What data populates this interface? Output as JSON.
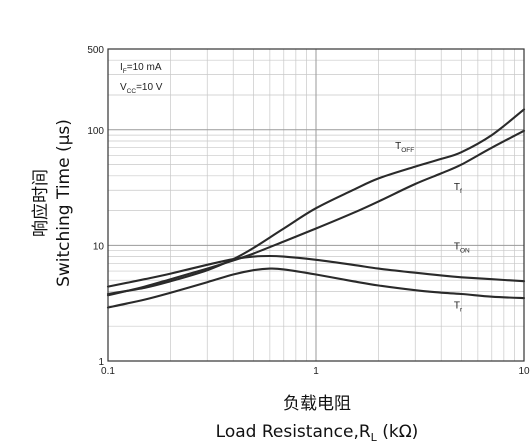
{
  "chart_data": {
    "type": "line",
    "title": "",
    "xlabel_cn": "负载电阻",
    "xlabel": "Load Resistance,R",
    "xlabel_sub": "L",
    "xlabel_unit": " (kΩ)",
    "ylabel_cn": "响应时间",
    "ylabel": "Switching Time (μs)",
    "x_scale": "log",
    "y_scale": "log",
    "xlim": [
      0.1,
      10
    ],
    "ylim": [
      1,
      500
    ],
    "grid": true,
    "x_ticks": [
      {
        "v": 0.1,
        "label": "0.1"
      },
      {
        "v": 1,
        "label": "1"
      },
      {
        "v": 10,
        "label": "10"
      }
    ],
    "y_ticks": [
      {
        "v": 1,
        "label": "1"
      },
      {
        "v": 10,
        "label": "10"
      },
      {
        "v": 100,
        "label": "100"
      },
      {
        "v": 500,
        "label": "500"
      }
    ],
    "conditions": [
      {
        "main": "I",
        "sub": "F",
        "rest": "=10 mA"
      },
      {
        "main": "V",
        "sub": "CC",
        "rest": "=10 V"
      }
    ],
    "series": [
      {
        "main": "T",
        "sub": "OFF",
        "label_at": [
          2.4,
          68
        ],
        "points": [
          [
            0.1,
            3.8
          ],
          [
            0.15,
            4.3
          ],
          [
            0.2,
            4.9
          ],
          [
            0.3,
            6.1
          ],
          [
            0.4,
            7.6
          ],
          [
            0.5,
            9.5
          ],
          [
            0.7,
            14
          ],
          [
            1,
            21
          ],
          [
            1.5,
            30
          ],
          [
            2,
            38
          ],
          [
            3,
            48
          ],
          [
            4,
            56
          ],
          [
            5,
            64
          ],
          [
            7,
            90
          ],
          [
            10,
            150
          ]
        ]
      },
      {
        "main": "T",
        "sub": "f",
        "label_at": [
          4.6,
          30
        ],
        "points": [
          [
            0.1,
            3.7
          ],
          [
            0.15,
            4.4
          ],
          [
            0.2,
            5.1
          ],
          [
            0.3,
            6.3
          ],
          [
            0.4,
            7.4
          ],
          [
            0.5,
            8.5
          ],
          [
            0.7,
            10.8
          ],
          [
            1,
            14
          ],
          [
            1.5,
            19
          ],
          [
            2,
            24
          ],
          [
            3,
            34
          ],
          [
            4,
            42
          ],
          [
            5,
            50
          ],
          [
            7,
            70
          ],
          [
            10,
            98
          ]
        ]
      },
      {
        "main": "T",
        "sub": "ON",
        "label_at": [
          4.6,
          9.2
        ],
        "points": [
          [
            0.1,
            4.4
          ],
          [
            0.15,
            5.1
          ],
          [
            0.2,
            5.7
          ],
          [
            0.3,
            6.8
          ],
          [
            0.4,
            7.6
          ],
          [
            0.5,
            8
          ],
          [
            0.6,
            8.1
          ],
          [
            0.7,
            8
          ],
          [
            1,
            7.5
          ],
          [
            1.5,
            6.8
          ],
          [
            2,
            6.3
          ],
          [
            3,
            5.8
          ],
          [
            4,
            5.5
          ],
          [
            5,
            5.3
          ],
          [
            7,
            5.1
          ],
          [
            10,
            4.9
          ]
        ]
      },
      {
        "main": "T",
        "sub": "r",
        "label_at": [
          4.6,
          2.85
        ],
        "points": [
          [
            0.1,
            2.9
          ],
          [
            0.15,
            3.4
          ],
          [
            0.2,
            3.9
          ],
          [
            0.3,
            4.8
          ],
          [
            0.4,
            5.6
          ],
          [
            0.5,
            6.1
          ],
          [
            0.6,
            6.3
          ],
          [
            0.7,
            6.2
          ],
          [
            1,
            5.6
          ],
          [
            1.5,
            4.9
          ],
          [
            2,
            4.5
          ],
          [
            3,
            4.1
          ],
          [
            4,
            3.9
          ],
          [
            5,
            3.8
          ],
          [
            7,
            3.6
          ],
          [
            10,
            3.5
          ]
        ]
      }
    ]
  }
}
